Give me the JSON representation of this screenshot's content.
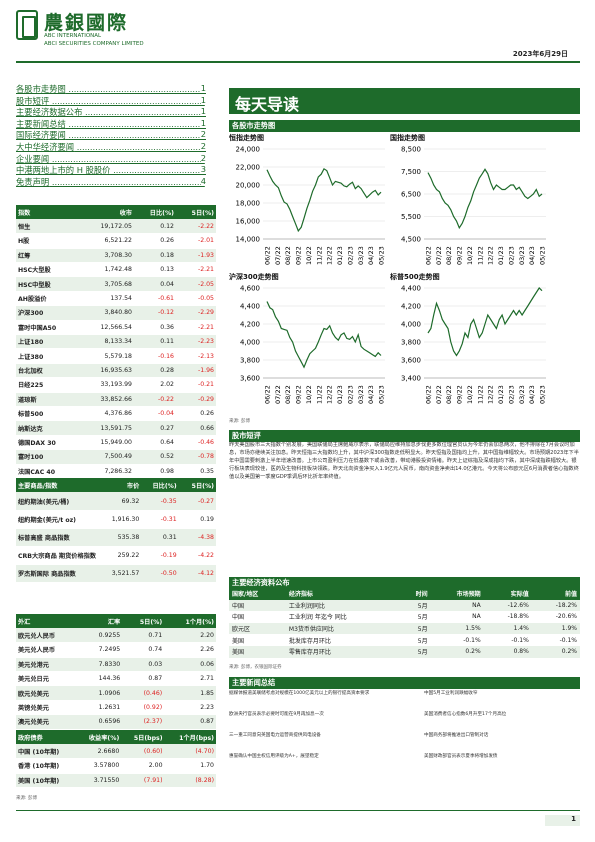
{
  "header": {
    "logo_cn": "農銀國際",
    "logo_en1": "ABC INTERNATIONAL",
    "logo_en2": "ABCI SECURITIES COMPANY LIMITED",
    "date": "2023年6月29日"
  },
  "toc": [
    {
      "label": "各股市走势图",
      "page": "1"
    },
    {
      "label": "股市短评",
      "page": "1"
    },
    {
      "label": "主要经济数据公布",
      "page": "1"
    },
    {
      "label": "主要新闻总结",
      "page": "1"
    },
    {
      "label": "国际经济要闻",
      "page": "2"
    },
    {
      "label": "大中华经济要闻",
      "page": "2"
    },
    {
      "label": "企业要闻",
      "page": "2"
    },
    {
      "label": "中港两地上市的 H 股股价",
      "page": "3"
    },
    {
      "label": "免责声明",
      "page": "4"
    }
  ],
  "banner": "每天导读",
  "index_table": {
    "headers": [
      "指数",
      "收市",
      "日比(%)",
      "5日(%)"
    ],
    "rows": [
      [
        "恒生",
        "19,172.05",
        "0.12",
        "-2.22"
      ],
      [
        "H股",
        "6,521.22",
        "0.26",
        "-2.01"
      ],
      [
        "红筹",
        "3,708.30",
        "0.18",
        "-1.93"
      ],
      [
        "HSC大型股",
        "1,742.48",
        "0.13",
        "-2.21"
      ],
      [
        "HSC中型股",
        "3,705.68",
        "0.04",
        "-2.05"
      ],
      [
        "AH股溢价",
        "137.54",
        "-0.61",
        "-0.05"
      ],
      [
        "沪深300",
        "3,840.80",
        "-0.12",
        "-2.29"
      ],
      [
        "富时中国A50",
        "12,566.54",
        "0.36",
        "-2.21"
      ],
      [
        "上证180",
        "8,133.34",
        "0.11",
        "-2.23"
      ],
      [
        "上证380",
        "5,579.18",
        "-0.16",
        "-2.13"
      ],
      [
        "台北加权",
        "16,935.63",
        "0.28",
        "-1.96"
      ],
      [
        "日经225",
        "33,193.99",
        "2.02",
        "-0.21"
      ],
      [
        "道琼斯",
        "33,852.66",
        "-0.22",
        "-0.29"
      ],
      [
        "标普500",
        "4,376.86",
        "-0.04",
        "0.26"
      ],
      [
        "纳斯达克",
        "13,591.75",
        "0.27",
        "0.66"
      ],
      [
        "德国DAX 30",
        "15,949.00",
        "0.64",
        "-0.46"
      ],
      [
        "富时100",
        "7,500.49",
        "0.52",
        "-0.78"
      ],
      [
        "法国CAC 40",
        "7,286.32",
        "0.98",
        "0.35"
      ]
    ]
  },
  "commodity_table": {
    "headers": [
      "主要商品/指数",
      "市价",
      "日比(%)",
      "5日(%)"
    ],
    "rows": [
      [
        "纽約期油(美元/桶)",
        "69.32",
        "-0.35",
        "-0.27"
      ],
      [
        "纽約期金(美元/t oz)",
        "1,916.30",
        "-0.31",
        "0.19"
      ],
      [
        "标普高盛 商品指数",
        "535.38",
        "0.31",
        "-4.38"
      ],
      [
        "CRB大宗商品 期货价格指数",
        "259.22",
        "-0.19",
        "-4.22"
      ],
      [
        "罗杰斯国际 商品指数",
        "3,521.57",
        "-0.50",
        "-4.12"
      ]
    ]
  },
  "fx_table": {
    "headers": [
      "外汇",
      "汇率",
      "5日(%)",
      "1个月(%)"
    ],
    "rows": [
      [
        "欧元兑人民币",
        "0.9255",
        "0.71",
        "2.20"
      ],
      [
        "美元兑人民币",
        "7.2495",
        "0.74",
        "2.26"
      ],
      [
        "美元兑港元",
        "7.8330",
        "0.03",
        "0.06"
      ],
      [
        "美元兑日元",
        "144.36",
        "0.87",
        "2.71"
      ],
      [
        "欧元兑美元",
        "1.0906",
        "(0.46)",
        "1.85"
      ],
      [
        "英镑兑美元",
        "1.2631",
        "(0.92)",
        "2.23"
      ],
      [
        "澳元兑美元",
        "0.6596",
        "(2.37)",
        "0.87"
      ]
    ]
  },
  "bond_table": {
    "headers": [
      "政府债券",
      "收益率(%)",
      "5日(bps)",
      "1个月(bps)"
    ],
    "rows": [
      [
        "中国 (10年期)",
        "2.6680",
        "(0.60)",
        "(4.70)"
      ],
      [
        "香港 (10年期)",
        "3.57800",
        "2.00",
        "1.70"
      ],
      [
        "美国 (10年期)",
        "3.71550",
        "(7.91)",
        "(8.28)"
      ]
    ]
  },
  "src_left": "来源: 彭博",
  "charts_section": "各股市走势图",
  "charts": [
    {
      "title": "恒指走势图",
      "yticks": [
        "24,000",
        "22,000",
        "20,000",
        "18,000",
        "16,000",
        "14,000"
      ],
      "ymin": 14000,
      "ymax": 24000,
      "values": [
        21700,
        21000,
        20400,
        20000,
        19700,
        18800,
        18100,
        17900,
        17300,
        16500,
        15700,
        14900,
        15300,
        16300,
        17400,
        18300,
        19300,
        20000,
        20900,
        21200,
        21800,
        21600,
        20800,
        20000,
        20400,
        20300,
        20200,
        19900,
        19800,
        20100,
        20300,
        19600,
        19900,
        19600,
        19100,
        18600,
        18900,
        19200,
        19400,
        18900,
        19200
      ]
    },
    {
      "title": "国指走势图",
      "yticks": [
        "8,500",
        "7,500",
        "6,500",
        "5,500",
        "4,500"
      ],
      "ymin": 4500,
      "ymax": 8500,
      "values": [
        7450,
        7200,
        6900,
        6700,
        6600,
        6300,
        6100,
        6000,
        5800,
        5500,
        5300,
        5000,
        5200,
        5500,
        5900,
        6200,
        6600,
        6900,
        7200,
        7400,
        7600,
        7400,
        7000,
        6700,
        6900,
        6800,
        6700,
        6700,
        6800,
        6900,
        6900,
        6700,
        6800,
        6600,
        6400,
        6300,
        6400,
        6500,
        6700,
        6400,
        6500
      ]
    },
    {
      "title": "沪深300走势图",
      "yticks": [
        "4,600",
        "4,400",
        "4,200",
        "4,000",
        "3,800",
        "3,600"
      ],
      "ymin": 3600,
      "ymax": 4600,
      "values": [
        4450,
        4380,
        4360,
        4280,
        4230,
        4150,
        4140,
        4130,
        4050,
        4000,
        3900,
        3840,
        3780,
        3720,
        3800,
        3870,
        3900,
        3930,
        4000,
        4080,
        4150,
        4140,
        4180,
        4100,
        4050,
        4020,
        4080,
        4100,
        4040,
        4030,
        4060,
        4000,
        4080,
        3950,
        3920,
        3900,
        3880,
        3860,
        3840,
        3880,
        3850
      ]
    },
    {
      "title": "标普500走势图",
      "yticks": [
        "4,400",
        "4,200",
        "4,000",
        "3,800",
        "3,600",
        "3,400"
      ],
      "ymin": 3400,
      "ymax": 4400,
      "values": [
        3900,
        3950,
        4100,
        4230,
        4150,
        4050,
        4000,
        3950,
        3800,
        3700,
        3650,
        3700,
        3780,
        3900,
        3850,
        4000,
        4050,
        3950,
        3850,
        3900,
        4000,
        4100,
        4050,
        4000,
        3950,
        4050,
        4100,
        4000,
        4050,
        4100,
        4150,
        4100,
        4150,
        4100,
        4150,
        4200,
        4250,
        4300,
        4350,
        4400,
        4370
      ]
    }
  ],
  "xticks": [
    "06/22",
    "07/22",
    "08/22",
    "09/22",
    "10/22",
    "11/22",
    "12/22",
    "01/23",
    "02/23",
    "03/23",
    "04/23",
    "05/23"
  ],
  "src_chart": "来源: 彭博",
  "commentary_title": "股市短评",
  "commentary": "昨天美国股市三大指数个别发展，美国联储局主席鲍威尔表示，联储局应维持加息步伐更多数位理官员认为今年仍会加息两次，他不排除在7月会议时加息，市场亦继续关注加息。昨天恒指三大指数均上升，其中沪深300指数走低明显大。昨天恒指及国指均上升，其中国指维幅较大。市场预期2023年下半年中国需要刺激上半年增速改善。上市公司盈利压力在低基数下或会改善，带动港股投资情绪。昨天上证综指及深成指均下跌，其中深成指跌幅较大。银行板块表现较佳，医药及生物科技板块领跌。昨天北向资金净买入1.9亿元人民币，南向资金净卖出14.0亿港元。今天将公布欧元区6月消费者信心指数终值以及美国第一季度GDP季调后环比折年率终值。",
  "events_title": "主要经济资料公布",
  "events_table": {
    "headers": [
      "国家/地区",
      "经济指标",
      "时间",
      "市场预期",
      "实际值",
      "前值"
    ],
    "rows": [
      [
        "中国",
        "工业利润同比",
        "5月",
        "NA",
        "-12.6%",
        "-18.2%"
      ],
      [
        "中国",
        "工业利润 年迄今 同比",
        "5月",
        "NA",
        "-18.8%",
        "-20.6%"
      ],
      [
        "欧元区",
        "M3货币供应同比",
        "5月",
        "1.5%",
        "1.4%",
        "1.9%"
      ],
      [
        "美国",
        "批发库存月环比",
        "5月",
        "-0.1%",
        "-0.1%",
        "-0.1%"
      ],
      [
        "美国",
        "零售库存月环比",
        "5月",
        "0.2%",
        "0.8%",
        "0.2%"
      ]
    ]
  },
  "events_src": "来源: 彭博，农银国际证券",
  "news_title": "主要新闻总结",
  "news_left": [
    "据媒体报道美联储考虑对规模在1000亿美元以上的银行提高资本要求",
    "欧洲央行官员表示必要时可能在9月再加息一次",
    "三一重工同意向英国电力运营商提供风电设备",
    "惠誉确认中国主权信用评级为A+，展望稳定"
  ],
  "news_right": [
    "中国5月工业利润跌幅收窄",
    "美国消费者信心指数6月升至17个月高位",
    "中国商务部将推进出口管制对话",
    "美国财政部官员表示夏季将增加发债"
  ],
  "page": "1"
}
